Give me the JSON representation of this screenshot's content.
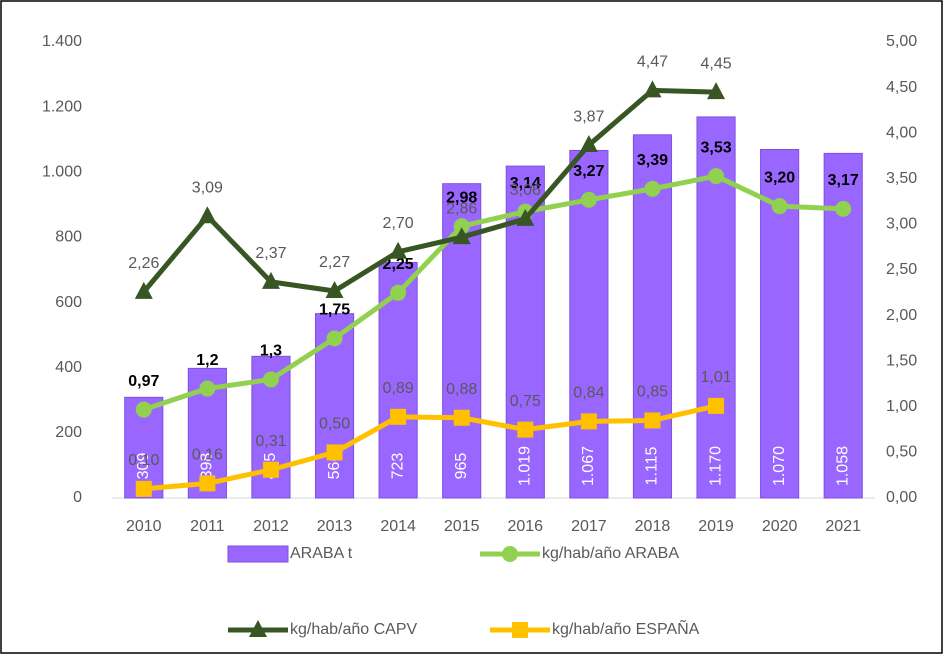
{
  "chart_data": {
    "type": "bar",
    "categories": [
      "2010",
      "2011",
      "2012",
      "2013",
      "2014",
      "2015",
      "2016",
      "2017",
      "2018",
      "2019",
      "2020",
      "2021"
    ],
    "ylim": [
      0,
      1400
    ],
    "yticks": [
      0,
      200,
      400,
      600,
      800,
      {
        "value": 1000,
        "label": "1.000"
      },
      {
        "value": 1200,
        "label": "1.200"
      },
      {
        "value": 1400,
        "label": "1.400"
      }
    ],
    "y2lim": [
      0,
      5
    ],
    "y2ticks": [
      {
        "value": 0,
        "label": "0,00"
      },
      {
        "value": 0.5,
        "label": "0,50"
      },
      {
        "value": 1,
        "label": "1,00"
      },
      {
        "value": 1.5,
        "label": "1,50"
      },
      {
        "value": 2,
        "label": "2,00"
      },
      {
        "value": 2.5,
        "label": "2,50"
      },
      {
        "value": 3,
        "label": "3,00"
      },
      {
        "value": 3.5,
        "label": "3,50"
      },
      {
        "value": 4,
        "label": "4,00"
      },
      {
        "value": 4.5,
        "label": "4,50"
      },
      {
        "value": 5,
        "label": "5,00"
      }
    ],
    "series": [
      {
        "name": "ARABA t",
        "type": "bar",
        "color": "#9966ff",
        "values": [
          309,
          398,
          435,
          566,
          723,
          965,
          1019,
          1067,
          1115,
          1170,
          1070,
          1058
        ],
        "value_labels": [
          "309",
          "398",
          "435",
          "566",
          "723",
          "965",
          "1.019",
          "1.067",
          "1.115",
          "1.170",
          "1.070",
          "1.058"
        ]
      },
      {
        "name": "kg/hab/año ARABA",
        "type": "line",
        "axis": "y2",
        "marker": "circle",
        "color": "#92d050",
        "values": [
          0.97,
          1.2,
          1.3,
          1.75,
          2.25,
          2.98,
          3.14,
          3.27,
          3.39,
          3.53,
          3.2,
          3.17
        ],
        "value_labels": [
          "0,97",
          "1,2",
          "1,3",
          "1,75",
          "2,25",
          "2,98",
          "3,14",
          "3,27",
          "3,39",
          "3,53",
          "3,20",
          "3,17"
        ]
      },
      {
        "name": "kg/hab/año CAPV",
        "type": "line",
        "axis": "y2",
        "marker": "triangle",
        "color": "#375623",
        "values": [
          2.26,
          3.09,
          2.37,
          2.27,
          2.7,
          2.86,
          3.06,
          3.87,
          4.47,
          4.45,
          null,
          null
        ],
        "value_labels": [
          "2,26",
          "3,09",
          "2,37",
          "2,27",
          "2,70",
          "2,86",
          "3,06",
          "3,87",
          "4,47",
          "4,45",
          null,
          null
        ]
      },
      {
        "name": "kg/hab/año ESPAÑA",
        "type": "line",
        "axis": "y2",
        "marker": "square",
        "color": "#ffc000",
        "values": [
          0.1,
          0.16,
          0.31,
          0.5,
          0.89,
          0.88,
          0.75,
          0.84,
          0.85,
          1.01,
          null,
          null
        ],
        "value_labels": [
          "0,10",
          "0,16",
          "0,31",
          "0,50",
          "0,89",
          "0,88",
          "0,75",
          "0,84",
          "0,85",
          "1,01",
          null,
          null
        ]
      }
    ]
  }
}
